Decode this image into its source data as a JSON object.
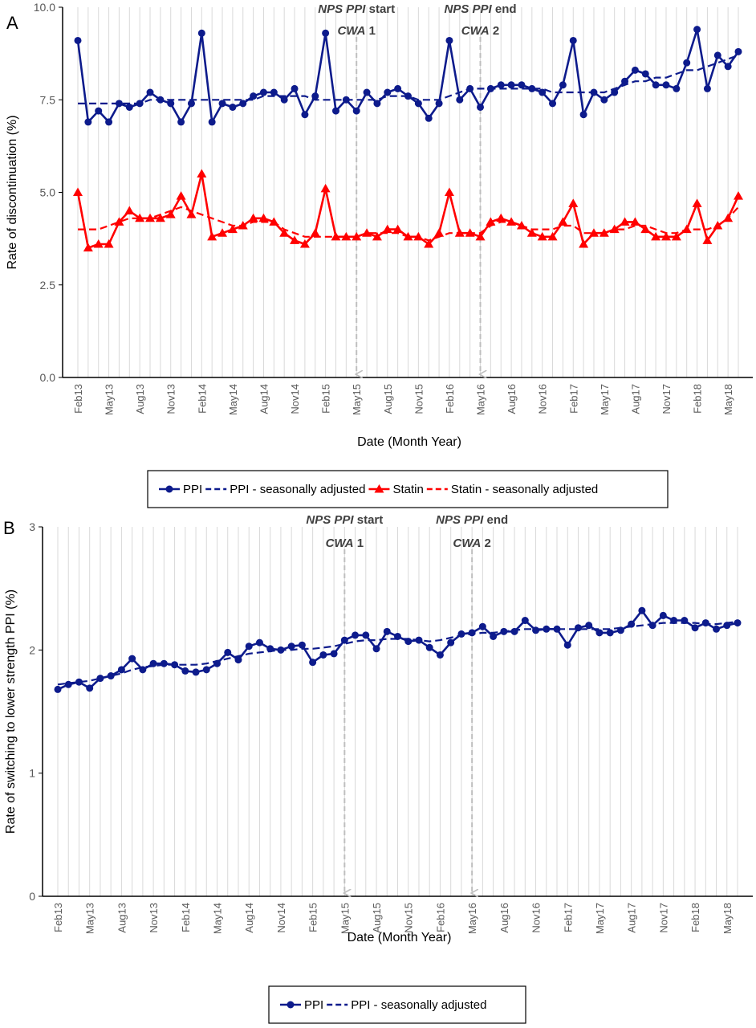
{
  "colors": {
    "ppi": "#0d1b8c",
    "statin": "#ff0000",
    "grid": "#d9d9d9",
    "axis": "#000000",
    "annotation_line": "#bfbfbf",
    "legend_border": "#000000"
  },
  "chart_data": [
    {
      "panel_label": "A",
      "type": "line",
      "xlabel": "Date (Month Year)",
      "ylabel": "Rate of discontinuation (%)",
      "ylim": [
        0,
        10
      ],
      "yticks": [
        "0.0",
        "2.5",
        "5.0",
        "7.5",
        "10.0"
      ],
      "ytick_values": [
        0,
        2.5,
        5,
        7.5,
        10
      ],
      "x_start": "Feb13",
      "x_end": "May18",
      "xtick_labels": [
        "Feb13",
        "May13",
        "Aug13",
        "Nov13",
        "Feb14",
        "May14",
        "Aug14",
        "Nov14",
        "Feb15",
        "May15",
        "Aug15",
        "Nov15",
        "Feb16",
        "May16",
        "Aug16",
        "Nov16",
        "Feb17",
        "May17",
        "Aug17",
        "Nov17",
        "Feb18",
        "May18"
      ],
      "grid": "vertical",
      "legend_position": "bottom",
      "series": [
        {
          "name": "PPI",
          "style": "solid-marker-circle",
          "color_key": "ppi",
          "values": [
            9.1,
            6.9,
            7.2,
            6.9,
            7.4,
            7.3,
            7.4,
            7.7,
            7.5,
            7.4,
            6.9,
            7.4,
            9.3,
            6.9,
            7.4,
            7.3,
            7.4,
            7.6,
            7.7,
            7.7,
            7.5,
            7.8,
            7.1,
            7.6,
            9.3,
            7.2,
            7.5,
            7.2,
            7.7,
            7.4,
            7.7,
            7.8,
            7.6,
            7.4,
            7.0,
            7.4,
            9.1,
            7.5,
            7.8,
            7.3,
            7.8,
            7.9,
            7.9,
            7.9,
            7.8,
            7.7,
            7.4,
            7.9,
            9.1,
            7.1,
            7.7,
            7.5,
            7.7,
            8.0,
            8.3,
            8.2,
            7.9,
            7.9,
            7.8,
            8.5,
            9.4,
            7.8,
            8.7,
            8.4,
            8.8
          ]
        },
        {
          "name": "PPI - seasonally adjusted",
          "style": "dashed",
          "color_key": "ppi",
          "values": [
            7.4,
            7.4,
            7.4,
            7.4,
            7.4,
            7.4,
            7.4,
            7.5,
            7.5,
            7.5,
            7.5,
            7.5,
            7.5,
            7.5,
            7.5,
            7.5,
            7.5,
            7.5,
            7.6,
            7.6,
            7.6,
            7.6,
            7.6,
            7.5,
            7.5,
            7.5,
            7.5,
            7.5,
            7.5,
            7.5,
            7.6,
            7.6,
            7.6,
            7.5,
            7.5,
            7.5,
            7.6,
            7.7,
            7.8,
            7.8,
            7.8,
            7.8,
            7.8,
            7.8,
            7.8,
            7.8,
            7.7,
            7.7,
            7.7,
            7.7,
            7.7,
            7.7,
            7.8,
            7.9,
            8.0,
            8.0,
            8.1,
            8.1,
            8.2,
            8.3,
            8.3,
            8.4,
            8.5,
            8.6,
            8.7
          ]
        },
        {
          "name": "Statin",
          "style": "solid-marker-triangle",
          "color_key": "statin",
          "values": [
            5.0,
            3.5,
            3.6,
            3.6,
            4.2,
            4.5,
            4.3,
            4.3,
            4.3,
            4.4,
            4.9,
            4.4,
            5.5,
            3.8,
            3.9,
            4.0,
            4.1,
            4.3,
            4.3,
            4.2,
            3.9,
            3.7,
            3.6,
            3.9,
            5.1,
            3.8,
            3.8,
            3.8,
            3.9,
            3.8,
            4.0,
            4.0,
            3.8,
            3.8,
            3.6,
            3.9,
            5.0,
            3.9,
            3.9,
            3.8,
            4.2,
            4.3,
            4.2,
            4.1,
            3.9,
            3.8,
            3.8,
            4.2,
            4.7,
            3.6,
            3.9,
            3.9,
            4.0,
            4.2,
            4.2,
            4.0,
            3.8,
            3.8,
            3.8,
            4.0,
            4.7,
            3.7,
            4.1,
            4.3,
            4.9
          ]
        },
        {
          "name": "Statin - seasonally adjusted",
          "style": "dashed",
          "color_key": "statin",
          "values": [
            4.0,
            4.0,
            4.0,
            4.1,
            4.2,
            4.3,
            4.3,
            4.3,
            4.4,
            4.5,
            4.6,
            4.5,
            4.4,
            4.3,
            4.2,
            4.1,
            4.1,
            4.2,
            4.2,
            4.2,
            4.0,
            3.9,
            3.8,
            3.8,
            3.8,
            3.8,
            3.8,
            3.8,
            3.9,
            3.9,
            3.9,
            3.9,
            3.8,
            3.8,
            3.7,
            3.8,
            3.9,
            3.9,
            3.9,
            3.9,
            4.1,
            4.2,
            4.2,
            4.1,
            4.0,
            4.0,
            4.0,
            4.1,
            4.1,
            3.9,
            3.9,
            3.9,
            4.0,
            4.0,
            4.1,
            4.1,
            4.0,
            3.9,
            3.9,
            4.0,
            4.0,
            4.0,
            4.1,
            4.3,
            4.6
          ]
        }
      ],
      "annotations": [
        {
          "index": 27,
          "line1_italic": "NPS PPI",
          "line1_rest": " start",
          "line2_italic": "CWA",
          "line2_rest": " 1"
        },
        {
          "index": 39,
          "line1_italic": "NPS PPI",
          "line1_rest": " end",
          "line2_italic": "CWA",
          "line2_rest": " 2"
        }
      ]
    },
    {
      "panel_label": "B",
      "type": "line",
      "xlabel": "Date (Month Year)",
      "ylabel": "Rate of switching to lower strength PPI (%)",
      "ylim": [
        0,
        3
      ],
      "yticks": [
        "0",
        "1",
        "2",
        "3"
      ],
      "ytick_values": [
        0,
        1,
        2,
        3
      ],
      "x_start": "Feb13",
      "x_end": "May18",
      "xtick_labels": [
        "Feb13",
        "May13",
        "Aug13",
        "Nov13",
        "Feb14",
        "May14",
        "Aug14",
        "Nov14",
        "Feb15",
        "May15",
        "Aug15",
        "Nov15",
        "Feb16",
        "May16",
        "Aug16",
        "Nov16",
        "Feb17",
        "May17",
        "Aug17",
        "Nov17",
        "Feb18",
        "May18"
      ],
      "grid": "vertical",
      "legend_position": "bottom",
      "series": [
        {
          "name": "PPI",
          "style": "solid-marker-circle",
          "color_key": "ppi",
          "values": [
            1.68,
            1.72,
            1.74,
            1.69,
            1.77,
            1.79,
            1.84,
            1.93,
            1.84,
            1.89,
            1.89,
            1.88,
            1.83,
            1.82,
            1.84,
            1.89,
            1.98,
            1.92,
            2.03,
            2.06,
            2.01,
            2.0,
            2.03,
            2.04,
            1.9,
            1.96,
            1.97,
            2.08,
            2.12,
            2.12,
            2.01,
            2.15,
            2.11,
            2.07,
            2.08,
            2.02,
            1.96,
            2.06,
            2.13,
            2.14,
            2.19,
            2.11,
            2.15,
            2.15,
            2.24,
            2.16,
            2.17,
            2.17,
            2.04,
            2.18,
            2.2,
            2.14,
            2.14,
            2.16,
            2.21,
            2.32,
            2.2,
            2.28,
            2.24,
            2.24,
            2.18,
            2.22,
            2.17,
            2.2,
            2.22
          ]
        },
        {
          "name": "PPI - seasonally adjusted",
          "style": "dashed",
          "color_key": "ppi",
          "values": [
            1.72,
            1.73,
            1.74,
            1.75,
            1.77,
            1.79,
            1.81,
            1.84,
            1.86,
            1.87,
            1.88,
            1.88,
            1.88,
            1.88,
            1.89,
            1.91,
            1.93,
            1.95,
            1.97,
            1.98,
            1.99,
            2.0,
            2.0,
            2.01,
            2.01,
            2.02,
            2.03,
            2.05,
            2.07,
            2.08,
            2.08,
            2.09,
            2.09,
            2.09,
            2.08,
            2.07,
            2.08,
            2.1,
            2.12,
            2.13,
            2.14,
            2.14,
            2.15,
            2.16,
            2.17,
            2.17,
            2.17,
            2.17,
            2.17,
            2.17,
            2.17,
            2.17,
            2.17,
            2.18,
            2.19,
            2.2,
            2.21,
            2.22,
            2.22,
            2.22,
            2.22,
            2.21,
            2.21,
            2.22,
            2.23
          ]
        }
      ],
      "annotations": [
        {
          "index": 27,
          "line1_italic": "NPS PPI",
          "line1_rest": " start",
          "line2_italic": "CWA",
          "line2_rest": " 1"
        },
        {
          "index": 39,
          "line1_italic": "NPS PPI",
          "line1_rest": " end",
          "line2_italic": "CWA",
          "line2_rest": " 2"
        }
      ]
    }
  ]
}
